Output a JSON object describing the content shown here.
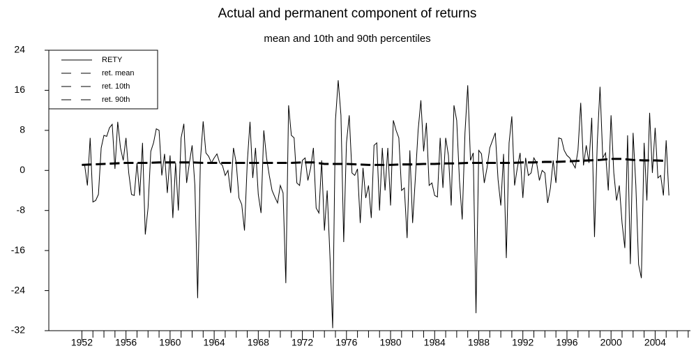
{
  "chart_data": {
    "type": "line",
    "title": "Actual and permanent component of returns",
    "subtitle": "mean and 10th and 90th percentiles",
    "x": [
      1952,
      1952.25,
      1952.5,
      1952.75,
      1953,
      1953.25,
      1953.5,
      1953.75,
      1954,
      1954.25,
      1954.5,
      1954.75,
      1955,
      1955.25,
      1955.5,
      1955.75,
      1956,
      1956.25,
      1956.5,
      1956.75,
      1957,
      1957.25,
      1957.5,
      1957.75,
      1958,
      1958.25,
      1958.5,
      1958.75,
      1959,
      1959.25,
      1959.5,
      1959.75,
      1960,
      1960.25,
      1960.5,
      1960.75,
      1961,
      1961.25,
      1961.5,
      1961.75,
      1962,
      1962.25,
      1962.5,
      1962.75,
      1963,
      1963.25,
      1963.5,
      1963.75,
      1964,
      1964.25,
      1964.5,
      1964.75,
      1965,
      1965.25,
      1965.5,
      1965.75,
      1966,
      1966.25,
      1966.5,
      1966.75,
      1967,
      1967.25,
      1967.5,
      1967.75,
      1968,
      1968.25,
      1968.5,
      1968.75,
      1969,
      1969.25,
      1969.5,
      1969.75,
      1970,
      1970.25,
      1970.5,
      1970.75,
      1971,
      1971.25,
      1971.5,
      1971.75,
      1972,
      1972.25,
      1972.5,
      1972.75,
      1973,
      1973.25,
      1973.5,
      1973.75,
      1974,
      1974.25,
      1974.5,
      1974.75,
      1975,
      1975.25,
      1975.5,
      1975.75,
      1976,
      1976.25,
      1976.5,
      1976.75,
      1977,
      1977.25,
      1977.5,
      1977.75,
      1978,
      1978.25,
      1978.5,
      1978.75,
      1979,
      1979.25,
      1979.5,
      1979.75,
      1980,
      1980.25,
      1980.5,
      1980.75,
      1981,
      1981.25,
      1981.5,
      1981.75,
      1982,
      1982.25,
      1982.5,
      1982.75,
      1983,
      1983.25,
      1983.5,
      1983.75,
      1984,
      1984.25,
      1984.5,
      1984.75,
      1985,
      1985.25,
      1985.5,
      1985.75,
      1986,
      1986.25,
      1986.5,
      1986.75,
      1987,
      1987.25,
      1987.5,
      1987.75,
      1988,
      1988.25,
      1988.5,
      1988.75,
      1989,
      1989.25,
      1989.5,
      1989.75,
      1990,
      1990.25,
      1990.5,
      1990.75,
      1991,
      1991.25,
      1991.5,
      1991.75,
      1992,
      1992.25,
      1992.5,
      1992.75,
      1993,
      1993.25,
      1993.5,
      1993.75,
      1994,
      1994.25,
      1994.5,
      1994.75,
      1995,
      1995.25,
      1995.5,
      1995.75,
      1996,
      1996.25,
      1996.5,
      1996.75,
      1997,
      1997.25,
      1997.5,
      1997.75,
      1998,
      1998.25,
      1998.5,
      1998.75,
      1999,
      1999.25,
      1999.5,
      1999.75,
      2000,
      2000.25,
      2000.5,
      2000.75,
      2001,
      2001.25,
      2001.5,
      2001.75,
      2002,
      2002.25,
      2002.5,
      2002.75,
      2003,
      2003.25,
      2003.5,
      2003.75,
      2004,
      2004.25,
      2004.5,
      2004.75,
      2005,
      2005.25
    ],
    "series": [
      {
        "name": "RETY",
        "color": "#000000",
        "line_style": "solid",
        "values": [
          1.2,
          1.1,
          -3,
          6.5,
          -6.3,
          -6,
          -4.8,
          4.5,
          7,
          6.8,
          8.5,
          9.2,
          0.3,
          9.7,
          4.5,
          2,
          6.5,
          -0.5,
          -4.8,
          -5,
          1.5,
          -5,
          5.5,
          -12.8,
          -7.5,
          3.8,
          5.5,
          8.3,
          8,
          -1,
          3.3,
          -4.5,
          3,
          -9.5,
          1.5,
          -8,
          6.5,
          9.3,
          -2.5,
          1.5,
          5,
          -3,
          -25.5,
          2,
          9.8,
          3.5,
          2.8,
          1.5,
          2.5,
          3.3,
          1.5,
          1,
          -1,
          0,
          -4.5,
          4.5,
          1.5,
          -5.5,
          -6.8,
          -12,
          1.5,
          9.7,
          -1.5,
          4.5,
          -4.8,
          -8.5,
          8,
          2.5,
          -1,
          -4,
          -5.3,
          -6.5,
          -3,
          -4.5,
          -22.5,
          13,
          7,
          6.5,
          -2.5,
          -3,
          2,
          2.5,
          -2,
          0.5,
          4.5,
          -7.5,
          -8.5,
          2,
          -12,
          -4,
          -17,
          -31.5,
          10,
          18,
          11,
          -14.3,
          5.5,
          11,
          -0.5,
          -1,
          0.3,
          -10.5,
          0.5,
          -5.5,
          -3,
          -9.5,
          5,
          5.5,
          -8,
          4.5,
          -4,
          4.5,
          -7,
          10,
          8,
          6.5,
          -4,
          -3.5,
          -13.5,
          4,
          -10.5,
          -1.5,
          8,
          14,
          3.8,
          9.5,
          -3,
          -2.5,
          -5,
          -5.3,
          6.5,
          -3.5,
          6.5,
          3,
          -7,
          13,
          10,
          -2,
          -9.8,
          7.5,
          17,
          2,
          3.5,
          -28.5,
          4,
          3.3,
          -2.5,
          0.5,
          4.5,
          6,
          7.5,
          -1.8,
          -7,
          3.3,
          -17.5,
          5.5,
          10.8,
          -3,
          0.5,
          3.5,
          -5.5,
          2.5,
          -1,
          -0.5,
          2.5,
          1.5,
          -2,
          0,
          -0.5,
          -6.5,
          -3.5,
          2,
          -2.5,
          6.5,
          6.3,
          4,
          3,
          2.5,
          1.5,
          0.5,
          4,
          13.5,
          1,
          5,
          1.5,
          10.5,
          -13.3,
          5.5,
          16.7,
          2.5,
          3.5,
          -4,
          11,
          -0.5,
          -6,
          -3,
          -10.5,
          -15.5,
          7,
          -18.7,
          7.5,
          -3,
          -18.8,
          -21.5,
          5.5,
          -6,
          11.5,
          -0.5,
          8.5,
          -1.5,
          -1,
          -5,
          6,
          -5
        ]
      },
      {
        "name": "ret. mean",
        "color": "#000000",
        "line_style": "dashed",
        "x": [
          1952,
          1953,
          1954,
          1955,
          1956,
          1957,
          1958,
          1959,
          1960,
          1961,
          1962,
          1963,
          1964,
          1965,
          1966,
          1967,
          1968,
          1969,
          1970,
          1971,
          1972,
          1973,
          1974,
          1975,
          1976,
          1977,
          1978,
          1979,
          1980,
          1981,
          1982,
          1983,
          1984,
          1985,
          1986,
          1987,
          1988,
          1989,
          1990,
          1991,
          1992,
          1993,
          1994,
          1995,
          1996,
          1997,
          1998,
          1999,
          2000,
          2001,
          2002,
          2003,
          2004,
          2005
        ],
        "values": [
          1.1,
          1.2,
          1.3,
          1.4,
          1.5,
          1.5,
          1.5,
          1.6,
          1.6,
          1.6,
          1.6,
          1.5,
          1.5,
          1.5,
          1.5,
          1.5,
          1.5,
          1.5,
          1.5,
          1.5,
          1.6,
          1.6,
          1.3,
          1.3,
          1.3,
          1.2,
          1.1,
          1.1,
          1.1,
          1.2,
          1.2,
          1.3,
          1.3,
          1.4,
          1.4,
          1.5,
          1.5,
          1.5,
          1.5,
          1.5,
          1.6,
          1.6,
          1.7,
          1.7,
          1.8,
          1.9,
          2.0,
          2.1,
          2.3,
          2.3,
          2.1,
          2.0,
          2.0,
          1.9
        ]
      },
      {
        "name": "ret. 10th",
        "color": "#000000",
        "line_style": "dashed",
        "x": [
          1952,
          1953,
          1954,
          1955,
          1956,
          1957,
          1958,
          1959,
          1960,
          1961,
          1962,
          1963,
          1964,
          1965,
          1966,
          1967,
          1968,
          1969,
          1970,
          1971,
          1972,
          1973,
          1974,
          1975,
          1976,
          1977,
          1978,
          1979,
          1980,
          1981,
          1982,
          1983,
          1984,
          1985,
          1986,
          1987,
          1988,
          1989,
          1990,
          1991,
          1992,
          1993,
          1994,
          1995,
          1996,
          1997,
          1998,
          1999,
          2000,
          2001,
          2002,
          2003,
          2004,
          2005
        ],
        "values": [
          1.0,
          1.1,
          1.2,
          1.3,
          1.4,
          1.4,
          1.4,
          1.5,
          1.5,
          1.5,
          1.5,
          1.4,
          1.4,
          1.4,
          1.4,
          1.4,
          1.4,
          1.4,
          1.4,
          1.4,
          1.5,
          1.5,
          1.2,
          1.2,
          1.2,
          1.1,
          1.0,
          1.0,
          1.0,
          1.1,
          1.1,
          1.2,
          1.2,
          1.3,
          1.3,
          1.4,
          1.4,
          1.4,
          1.4,
          1.4,
          1.5,
          1.5,
          1.6,
          1.6,
          1.7,
          1.8,
          1.9,
          2.0,
          2.2,
          2.2,
          2.0,
          1.9,
          1.9,
          1.8
        ]
      },
      {
        "name": "ret. 90th",
        "color": "#000000",
        "line_style": "dashed",
        "x": [
          1952,
          1953,
          1954,
          1955,
          1956,
          1957,
          1958,
          1959,
          1960,
          1961,
          1962,
          1963,
          1964,
          1965,
          1966,
          1967,
          1968,
          1969,
          1970,
          1971,
          1972,
          1973,
          1974,
          1975,
          1976,
          1977,
          1978,
          1979,
          1980,
          1981,
          1982,
          1983,
          1984,
          1985,
          1986,
          1987,
          1988,
          1989,
          1990,
          1991,
          1992,
          1993,
          1994,
          1995,
          1996,
          1997,
          1998,
          1999,
          2000,
          2001,
          2002,
          2003,
          2004,
          2005
        ],
        "values": [
          1.2,
          1.3,
          1.4,
          1.5,
          1.6,
          1.6,
          1.6,
          1.7,
          1.7,
          1.7,
          1.7,
          1.6,
          1.6,
          1.6,
          1.6,
          1.6,
          1.6,
          1.6,
          1.6,
          1.6,
          1.7,
          1.7,
          1.4,
          1.4,
          1.4,
          1.3,
          1.2,
          1.2,
          1.2,
          1.3,
          1.3,
          1.4,
          1.4,
          1.5,
          1.5,
          1.6,
          1.6,
          1.6,
          1.6,
          1.6,
          1.7,
          1.7,
          1.8,
          1.8,
          1.9,
          2.0,
          2.1,
          2.2,
          2.4,
          2.4,
          2.2,
          2.1,
          2.1,
          2.0
        ]
      }
    ],
    "xlim": [
      1949,
      2007.2
    ],
    "xticks": [
      1952,
      1956,
      1960,
      1964,
      1968,
      1972,
      1976,
      1980,
      1984,
      1988,
      1992,
      1996,
      2000,
      2004
    ],
    "ylim": [
      -32,
      24
    ],
    "yticks": [
      -32,
      -24,
      -16,
      -8,
      0,
      8,
      16,
      24
    ],
    "grid": false,
    "legend": "top-left"
  }
}
